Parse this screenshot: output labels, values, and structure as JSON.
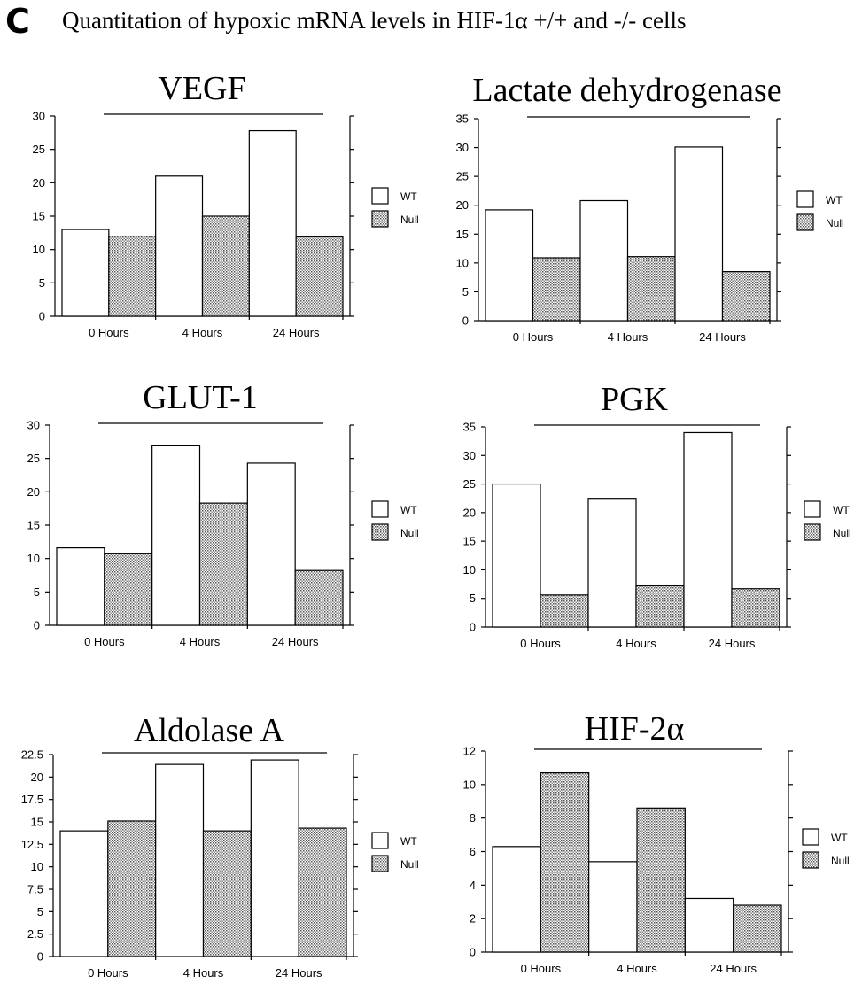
{
  "panel_letter": "C",
  "figure_title": "Quantitation of hypoxic mRNA levels in HIF-1α +/+ and -/- cells",
  "legend": {
    "wt": "WT",
    "null": "Null"
  },
  "colors": {
    "wt_fill": "#ffffff",
    "null_fill": "stippled-gray",
    "ink": "#000000"
  },
  "chart_data": [
    {
      "type": "bar",
      "title": "VEGF",
      "categories": [
        "0 Hours",
        "4 Hours",
        "24 Hours"
      ],
      "series": [
        {
          "name": "WT",
          "values": [
            13,
            21,
            27.8
          ]
        },
        {
          "name": "Null",
          "values": [
            12,
            15,
            11.9
          ]
        }
      ],
      "ylim": [
        0,
        30
      ],
      "yticks": [
        "0",
        "5",
        "10",
        "15",
        "20",
        "25",
        "30"
      ],
      "legend_position": "right"
    },
    {
      "type": "bar",
      "title": "Lactate dehydrogenase",
      "categories": [
        "0 Hours",
        "4 Hours",
        "24 Hours"
      ],
      "series": [
        {
          "name": "WT",
          "values": [
            19.2,
            20.8,
            30.1
          ]
        },
        {
          "name": "Null",
          "values": [
            10.9,
            11.1,
            8.5
          ]
        }
      ],
      "ylim": [
        0,
        35
      ],
      "yticks": [
        "0",
        "5",
        "10",
        "15",
        "20",
        "25",
        "30",
        "35"
      ],
      "legend_position": "right"
    },
    {
      "type": "bar",
      "title": "GLUT-1",
      "categories": [
        "0 Hours",
        "4 Hours",
        "24 Hours"
      ],
      "series": [
        {
          "name": "WT",
          "values": [
            11.6,
            27,
            24.3
          ]
        },
        {
          "name": "Null",
          "values": [
            10.8,
            18.3,
            8.2
          ]
        }
      ],
      "ylim": [
        0,
        30
      ],
      "yticks": [
        "0",
        "5",
        "10",
        "15",
        "20",
        "25",
        "30"
      ],
      "legend_position": "right"
    },
    {
      "type": "bar",
      "title": "PGK",
      "categories": [
        "0 Hours",
        "4 Hours",
        "24 Hours"
      ],
      "series": [
        {
          "name": "WT",
          "values": [
            25,
            22.5,
            34
          ]
        },
        {
          "name": "Null",
          "values": [
            5.6,
            7.2,
            6.7
          ]
        }
      ],
      "ylim": [
        0,
        35
      ],
      "yticks": [
        "0",
        "5",
        "10",
        "15",
        "20",
        "25",
        "30",
        "35"
      ],
      "legend_position": "right"
    },
    {
      "type": "bar",
      "title": "Aldolase A",
      "categories": [
        "0 Hours",
        "4 Hours",
        "24 Hours"
      ],
      "series": [
        {
          "name": "WT",
          "values": [
            14,
            21.4,
            21.9
          ]
        },
        {
          "name": "Null",
          "values": [
            15.1,
            14,
            14.3
          ]
        }
      ],
      "ylim": [
        0,
        22.5
      ],
      "yticks": [
        "0",
        "2.5",
        "5",
        "7.5",
        "10",
        "12.5",
        "15",
        "17.5",
        "20",
        "22.5"
      ],
      "legend_position": "right"
    },
    {
      "type": "bar",
      "title": "HIF-2α",
      "categories": [
        "0 Hours",
        "4 Hours",
        "24 Hours"
      ],
      "series": [
        {
          "name": "WT",
          "values": [
            6.3,
            5.4,
            3.2
          ]
        },
        {
          "name": "Null",
          "values": [
            10.7,
            8.6,
            2.8
          ]
        }
      ],
      "ylim": [
        0,
        12
      ],
      "yticks": [
        "0",
        "2",
        "4",
        "6",
        "8",
        "10",
        "12"
      ],
      "legend_position": "right"
    }
  ]
}
